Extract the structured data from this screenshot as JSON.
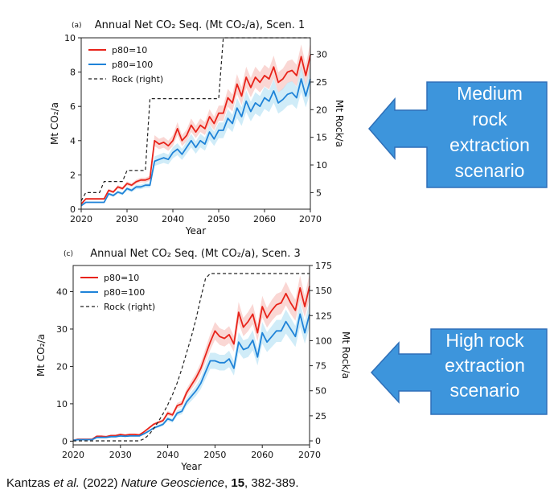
{
  "colors": {
    "p80_10": "#e8231a",
    "p80_100": "#1f83d8",
    "rock": "#222222",
    "band_red": "#f6b6b0",
    "band_blue": "#a9dcf3",
    "callout_fill": "#3d95dc",
    "callout_stroke": "#2e6fb8",
    "callout_text": "#ffffff"
  },
  "chart_data": [
    {
      "type": "line",
      "panel_label": "(a)",
      "title": "Annual Net CO₂ Seq. (Mt CO₂/a), Scen. 1",
      "xlabel": "Year",
      "ylabel": "Mt CO₂/a",
      "ylabel_right": "Mt Rock/a",
      "xlim": [
        2020,
        2070
      ],
      "ylim": [
        0,
        10
      ],
      "ylim_right": [
        2,
        33
      ],
      "xticks": [
        "2020",
        "2030",
        "2040",
        "2050",
        "2060",
        "2070"
      ],
      "yticks": [
        "0",
        "2",
        "4",
        "6",
        "8",
        "10"
      ],
      "yticks_right": [
        "5",
        "10",
        "15",
        "20",
        "25",
        "30"
      ],
      "legend_position": "top-left",
      "x": [
        2020,
        2021,
        2022,
        2023,
        2024,
        2025,
        2026,
        2027,
        2028,
        2029,
        2030,
        2031,
        2032,
        2033,
        2034,
        2035,
        2036,
        2037,
        2038,
        2039,
        2040,
        2041,
        2042,
        2043,
        2044,
        2045,
        2046,
        2047,
        2048,
        2049,
        2050,
        2051,
        2052,
        2053,
        2054,
        2055,
        2056,
        2057,
        2058,
        2059,
        2060,
        2061,
        2062,
        2063,
        2064,
        2065,
        2066,
        2067,
        2068,
        2069,
        2070
      ],
      "series": [
        {
          "name": "p80=10",
          "axis": "left",
          "style": "solid",
          "values": [
            0.3,
            0.6,
            0.6,
            0.6,
            0.6,
            0.6,
            1.1,
            1.0,
            1.3,
            1.2,
            1.5,
            1.4,
            1.6,
            1.7,
            1.7,
            1.8,
            4.0,
            3.8,
            3.9,
            3.7,
            4.0,
            4.7,
            4.0,
            4.3,
            4.9,
            4.5,
            4.9,
            4.7,
            5.4,
            5.0,
            5.6,
            5.6,
            6.5,
            6.2,
            7.3,
            6.6,
            7.7,
            7.1,
            7.7,
            7.4,
            7.8,
            7.6,
            8.3,
            7.4,
            7.6,
            8.0,
            8.1,
            7.8,
            8.9,
            7.8,
            9.0
          ]
        },
        {
          "name": "p80=100",
          "axis": "left",
          "style": "solid",
          "values": [
            0.2,
            0.4,
            0.4,
            0.4,
            0.4,
            0.4,
            0.9,
            0.8,
            1.0,
            0.9,
            1.2,
            1.1,
            1.3,
            1.3,
            1.4,
            1.4,
            2.8,
            2.9,
            3.0,
            2.9,
            3.3,
            3.5,
            3.2,
            3.6,
            4.0,
            3.6,
            4.0,
            3.8,
            4.5,
            4.1,
            4.6,
            4.6,
            5.3,
            5.0,
            5.9,
            5.4,
            6.3,
            5.7,
            6.2,
            6.0,
            6.5,
            6.3,
            6.9,
            6.2,
            6.4,
            6.7,
            6.8,
            6.5,
            7.6,
            6.6,
            7.6
          ]
        },
        {
          "name": "Rock (right)",
          "axis": "right",
          "style": "dashed",
          "values": [
            3.5,
            5,
            5,
            5,
            5,
            7,
            7,
            7,
            7,
            7,
            9,
            9,
            9,
            9,
            9,
            22,
            22,
            22,
            22,
            22,
            22,
            22,
            22,
            22,
            22,
            22,
            22,
            22,
            22,
            22,
            22,
            33,
            33,
            33,
            33,
            33,
            33,
            33,
            33,
            33,
            33,
            33,
            33,
            33,
            33,
            33,
            33,
            33,
            33,
            33,
            33
          ]
        }
      ]
    },
    {
      "type": "line",
      "panel_label": "(c)",
      "title": "Annual Net CO₂ Seq. (Mt CO₂/a), Scen. 3",
      "xlabel": "Year",
      "ylabel": "Mt CO₂/a",
      "ylabel_right": "Mt Rock/a",
      "xlim": [
        2020,
        2070
      ],
      "ylim": [
        -1,
        47
      ],
      "ylim_right": [
        -4,
        175
      ],
      "xticks": [
        "2020",
        "2030",
        "2040",
        "2050",
        "2060",
        "2070"
      ],
      "yticks": [
        "0",
        "10",
        "20",
        "30",
        "40"
      ],
      "yticks_right": [
        "0",
        "25",
        "50",
        "75",
        "100",
        "125",
        "150",
        "175"
      ],
      "legend_position": "top-left",
      "x": [
        2020,
        2021,
        2022,
        2023,
        2024,
        2025,
        2026,
        2027,
        2028,
        2029,
        2030,
        2031,
        2032,
        2033,
        2034,
        2035,
        2036,
        2037,
        2038,
        2039,
        2040,
        2041,
        2042,
        2043,
        2044,
        2045,
        2046,
        2047,
        2048,
        2049,
        2050,
        2051,
        2052,
        2053,
        2054,
        2055,
        2056,
        2057,
        2058,
        2059,
        2060,
        2061,
        2062,
        2063,
        2064,
        2065,
        2066,
        2067,
        2068,
        2069,
        2070
      ],
      "series": [
        {
          "name": "p80=10",
          "axis": "left",
          "style": "solid",
          "values": [
            0.2,
            0.5,
            0.5,
            0.5,
            0.5,
            1.3,
            1.3,
            1.2,
            1.5,
            1.5,
            1.8,
            1.6,
            1.8,
            1.8,
            1.7,
            2.5,
            3.5,
            4.5,
            5.0,
            5.5,
            7.5,
            7.0,
            9.5,
            10.0,
            13.0,
            15.0,
            17.0,
            19.5,
            23.0,
            26.5,
            29.5,
            28.0,
            27.5,
            28.5,
            26.0,
            34.5,
            30.5,
            32.0,
            34.0,
            29.0,
            36.0,
            33.0,
            35.0,
            36.5,
            37.0,
            39.5,
            37.0,
            35.0,
            41.0,
            36.0,
            41.5
          ]
        },
        {
          "name": "p80=100",
          "axis": "left",
          "style": "solid",
          "values": [
            0.2,
            0.4,
            0.4,
            0.4,
            0.4,
            1.0,
            1.0,
            1.0,
            1.2,
            1.2,
            1.4,
            1.3,
            1.4,
            1.4,
            1.4,
            2.0,
            2.7,
            3.5,
            4.0,
            4.5,
            6.0,
            5.5,
            7.5,
            8.0,
            10.5,
            12.0,
            13.5,
            15.5,
            18.5,
            21.5,
            21.5,
            21.0,
            21.0,
            22.0,
            19.5,
            26.5,
            24.5,
            25.0,
            27.0,
            22.5,
            29.0,
            26.5,
            28.0,
            29.5,
            29.5,
            32.0,
            30.0,
            28.0,
            34.0,
            29.0,
            34.0
          ]
        },
        {
          "name": "Rock (right)",
          "axis": "right",
          "style": "dashed",
          "values": [
            0,
            0,
            0,
            0,
            0,
            0,
            0,
            0,
            0,
            0,
            0,
            0,
            0,
            0,
            0,
            2,
            6,
            12,
            19,
            27,
            36,
            46,
            58,
            72,
            88,
            104,
            122,
            143,
            162,
            167,
            167,
            167,
            167,
            167,
            167,
            167,
            167,
            167,
            167,
            167,
            167,
            167,
            167,
            167,
            167,
            167,
            167,
            167,
            167,
            167,
            167
          ]
        }
      ]
    }
  ],
  "callouts": [
    {
      "lines": [
        "Medium",
        "rock",
        "extraction",
        "scenario"
      ]
    },
    {
      "lines": [
        "High rock",
        "extraction",
        "scenario"
      ]
    }
  ],
  "citation": {
    "prefix": "Kantzas ",
    "etal": "et al.",
    "middle": " (2022) ",
    "journal": "Nature Geoscience",
    "sep": ", ",
    "volume": "15",
    "pages": ", 382-389."
  }
}
